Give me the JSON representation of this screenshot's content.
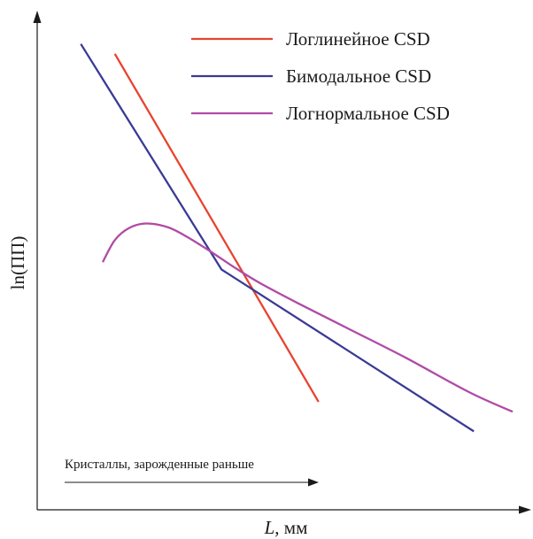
{
  "chart_data": {
    "type": "line",
    "title": "",
    "xlabel_var": "L",
    "xlabel_unit": ", мм",
    "ylabel": "ln(ПП)",
    "xlim": [
      0,
      10
    ],
    "ylim": [
      0,
      10
    ],
    "ticks_shown": false,
    "grid": false,
    "legend_position": "top-right",
    "series": [
      {
        "name": "Логлинейное CSD",
        "color": "#e8432e",
        "x": [
          1.6,
          5.8
        ],
        "y": [
          9.3,
          2.2
        ]
      },
      {
        "name": "Бимодальное CSD",
        "color": "#3a3a96",
        "x": [
          0.9,
          3.8,
          9.0
        ],
        "y": [
          9.5,
          4.9,
          1.6
        ]
      },
      {
        "name": "Логнормальное CSD",
        "color": "#b04aa6",
        "x": [
          1.35,
          1.6,
          1.9,
          2.25,
          2.7,
          3.1,
          3.6,
          4.1,
          4.6,
          5.4,
          6.4,
          7.6,
          8.9,
          9.8
        ],
        "y": [
          5.05,
          5.5,
          5.75,
          5.84,
          5.76,
          5.56,
          5.25,
          4.92,
          4.62,
          4.2,
          3.7,
          3.1,
          2.4,
          2.0
        ]
      }
    ],
    "annotation": {
      "text": "Кристаллы, зарожденные раньше",
      "arrow": "right"
    }
  }
}
